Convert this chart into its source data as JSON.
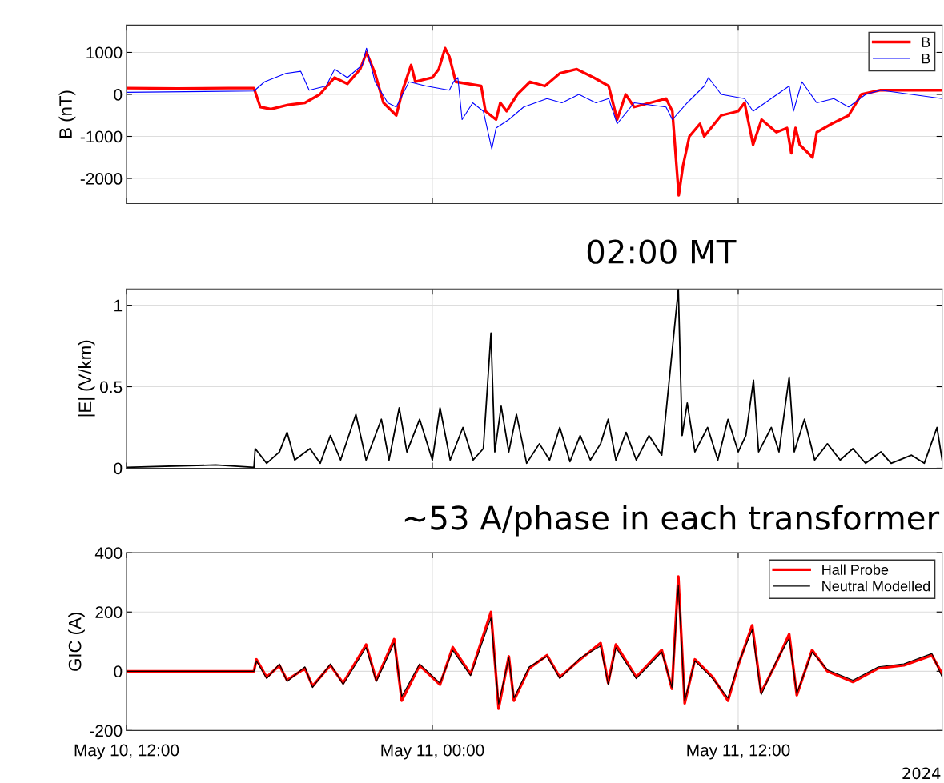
{
  "chart_data": [
    {
      "type": "line",
      "ylabel": "B (nT)",
      "ylim": [
        -2600,
        1650
      ],
      "yticks": [
        -2000,
        -1000,
        0,
        1000
      ],
      "xlim": [
        "2024-05-10T12:00",
        "2024-05-11T20:00"
      ],
      "xticks": [
        {
          "value": "2024-05-10T12:00",
          "label": null
        },
        {
          "value": "2024-05-11T00:00",
          "label": null
        },
        {
          "value": "2024-05-11T12:00",
          "label": null
        }
      ],
      "tick_labels": "y",
      "grid": true,
      "legend": "top right",
      "series": [
        {
          "name": "B",
          "color": "#ff0000",
          "x": [
            "2024-05-10T12:00",
            "2024-05-10T14:00",
            "2024-05-10T16:00",
            "2024-05-10T17:00",
            "2024-05-10T17:05",
            "2024-05-10T17:15",
            "2024-05-10T17:40",
            "2024-05-10T18:20",
            "2024-05-10T19:00",
            "2024-05-10T19:35",
            "2024-05-10T20:10",
            "2024-05-10T20:40",
            "2024-05-10T21:10",
            "2024-05-10T21:25",
            "2024-05-10T21:45",
            "2024-05-10T22:05",
            "2024-05-10T22:35",
            "2024-05-10T22:50",
            "2024-05-10T23:10",
            "2024-05-10T23:20",
            "2024-05-11T00:00",
            "2024-05-11T00:15",
            "2024-05-11T00:30",
            "2024-05-11T00:40",
            "2024-05-11T00:55",
            "2024-05-11T01:55",
            "2024-05-11T02:05",
            "2024-05-11T02:30",
            "2024-05-11T02:40",
            "2024-05-11T02:55",
            "2024-05-11T03:20",
            "2024-05-11T03:50",
            "2024-05-11T04:25",
            "2024-05-11T05:00",
            "2024-05-11T05:40",
            "2024-05-11T06:20",
            "2024-05-11T06:55",
            "2024-05-11T07:05",
            "2024-05-11T07:15",
            "2024-05-11T07:35",
            "2024-05-11T07:55",
            "2024-05-11T09:10",
            "2024-05-11T09:25",
            "2024-05-11T09:40",
            "2024-05-11T09:50",
            "2024-05-11T10:05",
            "2024-05-11T10:30",
            "2024-05-11T10:40",
            "2024-05-11T11:20",
            "2024-05-11T12:00",
            "2024-05-11T12:15",
            "2024-05-11T12:35",
            "2024-05-11T12:55",
            "2024-05-11T13:30",
            "2024-05-11T13:55",
            "2024-05-11T14:05",
            "2024-05-11T14:15",
            "2024-05-11T14:25",
            "2024-05-11T14:55",
            "2024-05-11T15:05",
            "2024-05-11T15:40",
            "2024-05-11T16:20",
            "2024-05-11T16:50",
            "2024-05-11T17:35",
            "2024-05-11T20:00"
          ],
          "values": [
            150,
            140,
            150,
            150,
            0,
            -300,
            -350,
            -250,
            -200,
            0,
            400,
            250,
            600,
            1000,
            500,
            -200,
            -500,
            100,
            700,
            300,
            400,
            600,
            1100,
            900,
            300,
            200,
            -400,
            -600,
            -200,
            -400,
            0,
            300,
            200,
            500,
            600,
            400,
            200,
            -200,
            -600,
            0,
            -300,
            -100,
            -400,
            -2400,
            -1700,
            -1000,
            -700,
            -1000,
            -500,
            -400,
            -200,
            -1200,
            -600,
            -900,
            -800,
            -1400,
            -800,
            -1200,
            -1500,
            -900,
            -700,
            -500,
            0,
            100,
            100
          ]
        },
        {
          "name": "B",
          "color": "#0000ff",
          "x": [
            "2024-05-10T12:00",
            "2024-05-10T17:00",
            "2024-05-10T17:25",
            "2024-05-10T18:15",
            "2024-05-10T18:50",
            "2024-05-10T19:10",
            "2024-05-10T19:50",
            "2024-05-10T20:10",
            "2024-05-10T20:40",
            "2024-05-10T21:15",
            "2024-05-10T21:25",
            "2024-05-10T21:45",
            "2024-05-10T22:15",
            "2024-05-10T22:35",
            "2024-05-10T23:05",
            "2024-05-10T23:45",
            "2024-05-11T00:40",
            "2024-05-11T00:50",
            "2024-05-11T01:00",
            "2024-05-11T01:10",
            "2024-05-11T01:35",
            "2024-05-11T02:00",
            "2024-05-11T02:20",
            "2024-05-11T02:30",
            "2024-05-11T03:00",
            "2024-05-11T03:35",
            "2024-05-11T04:30",
            "2024-05-11T05:05",
            "2024-05-11T05:45",
            "2024-05-11T06:25",
            "2024-05-11T06:55",
            "2024-05-11T07:15",
            "2024-05-11T07:55",
            "2024-05-11T09:10",
            "2024-05-11T09:25",
            "2024-05-11T10:00",
            "2024-05-11T10:40",
            "2024-05-11T10:50",
            "2024-05-11T11:20",
            "2024-05-11T12:15",
            "2024-05-11T12:35",
            "2024-05-11T14:00",
            "2024-05-11T14:10",
            "2024-05-11T14:30",
            "2024-05-11T15:05",
            "2024-05-11T15:45",
            "2024-05-11T16:20",
            "2024-05-11T17:00",
            "2024-05-11T17:35",
            "2024-05-11T20:00"
          ],
          "values": [
            50,
            80,
            300,
            500,
            550,
            100,
            200,
            600,
            400,
            700,
            1100,
            300,
            -200,
            -300,
            300,
            200,
            100,
            300,
            400,
            -600,
            -200,
            -400,
            -1300,
            -800,
            -600,
            -300,
            -100,
            -200,
            0,
            -200,
            -100,
            -700,
            -200,
            -300,
            -600,
            -200,
            200,
            400,
            0,
            -100,
            -400,
            200,
            -400,
            300,
            -200,
            -100,
            -300,
            0,
            100,
            -100
          ]
        }
      ]
    },
    {
      "type": "line",
      "ylabel": "|E| (V/km)",
      "ylim": [
        0,
        1.1
      ],
      "yticks": [
        0,
        0.5,
        1
      ],
      "xlim": [
        "2024-05-10T12:00",
        "2024-05-11T20:00"
      ],
      "xticks": [
        {
          "value": "2024-05-10T12:00",
          "label": null
        },
        {
          "value": "2024-05-11T00:00",
          "label": null
        },
        {
          "value": "2024-05-11T12:00",
          "label": null
        }
      ],
      "tick_labels": "y",
      "grid": true,
      "annotations": [
        "02:00 MT"
      ],
      "series": [
        {
          "color": "#000000",
          "x": [
            "2024-05-10T12:00",
            "2024-05-10T15:30",
            "2024-05-10T17:00",
            "2024-05-10T17:03",
            "2024-05-10T17:30",
            "2024-05-10T18:00",
            "2024-05-10T18:18",
            "2024-05-10T18:36",
            "2024-05-10T19:12",
            "2024-05-10T19:36",
            "2024-05-10T20:00",
            "2024-05-10T20:24",
            "2024-05-10T21:00",
            "2024-05-10T21:24",
            "2024-05-10T22:00",
            "2024-05-10T22:18",
            "2024-05-10T22:42",
            "2024-05-10T23:00",
            "2024-05-10T23:30",
            "2024-05-11T00:00",
            "2024-05-11T00:18",
            "2024-05-11T00:42",
            "2024-05-11T01:12",
            "2024-05-11T01:36",
            "2024-05-11T02:00",
            "2024-05-11T02:18",
            "2024-05-11T02:27",
            "2024-05-11T02:42",
            "2024-05-11T03:00",
            "2024-05-11T03:18",
            "2024-05-11T03:42",
            "2024-05-11T04:12",
            "2024-05-11T04:36",
            "2024-05-11T05:00",
            "2024-05-11T05:24",
            "2024-05-11T05:48",
            "2024-05-11T06:12",
            "2024-05-11T06:36",
            "2024-05-11T06:54",
            "2024-05-11T07:12",
            "2024-05-11T07:36",
            "2024-05-11T08:00",
            "2024-05-11T08:30",
            "2024-05-11T09:00",
            "2024-05-11T09:39",
            "2024-05-11T09:48",
            "2024-05-11T10:00",
            "2024-05-11T10:18",
            "2024-05-11T10:48",
            "2024-05-11T11:12",
            "2024-05-11T11:36",
            "2024-05-11T12:00",
            "2024-05-11T12:18",
            "2024-05-11T12:36",
            "2024-05-11T12:48",
            "2024-05-11T13:18",
            "2024-05-11T13:36",
            "2024-05-11T14:00",
            "2024-05-11T14:12",
            "2024-05-11T14:36",
            "2024-05-11T15:00",
            "2024-05-11T15:30",
            "2024-05-11T16:00",
            "2024-05-11T16:30",
            "2024-05-11T17:00",
            "2024-05-11T17:36",
            "2024-05-11T18:00",
            "2024-05-11T18:48",
            "2024-05-11T19:18",
            "2024-05-11T19:48",
            "2024-05-11T20:00"
          ],
          "values": [
            0.005,
            0.02,
            0.005,
            0.12,
            0.03,
            0.1,
            0.22,
            0.05,
            0.12,
            0.03,
            0.2,
            0.05,
            0.33,
            0.05,
            0.3,
            0.05,
            0.37,
            0.1,
            0.3,
            0.05,
            0.37,
            0.05,
            0.25,
            0.05,
            0.12,
            0.83,
            0.1,
            0.38,
            0.1,
            0.33,
            0.03,
            0.15,
            0.05,
            0.25,
            0.04,
            0.2,
            0.05,
            0.15,
            0.3,
            0.05,
            0.22,
            0.05,
            0.2,
            0.08,
            1.1,
            0.2,
            0.4,
            0.1,
            0.25,
            0.05,
            0.3,
            0.1,
            0.2,
            0.54,
            0.1,
            0.25,
            0.1,
            0.56,
            0.1,
            0.3,
            0.05,
            0.15,
            0.05,
            0.12,
            0.03,
            0.1,
            0.03,
            0.08,
            0.03,
            0.25,
            0.05
          ]
        }
      ]
    },
    {
      "type": "line",
      "ylabel": "GIC (A)",
      "ylim": [
        -200,
        400
      ],
      "yticks": [
        -200,
        0,
        200,
        400
      ],
      "xlim": [
        "2024-05-10T12:00",
        "2024-05-11T20:00"
      ],
      "xticks": [
        {
          "value": "2024-05-10T12:00",
          "label": "May 10, 12:00"
        },
        {
          "value": "2024-05-11T00:00",
          "label": "May 11, 00:00"
        },
        {
          "value": "2024-05-11T12:00",
          "label": "May 11, 12:00"
        }
      ],
      "grid": true,
      "legend": "top right",
      "annotations": [
        "~53 A/phase in each transformer",
        "2024"
      ],
      "x": [
        "2024-05-10T12:00",
        "2024-05-10T17:00",
        "2024-05-10T17:06",
        "2024-05-10T17:30",
        "2024-05-10T18:00",
        "2024-05-10T18:18",
        "2024-05-10T19:00",
        "2024-05-10T19:18",
        "2024-05-10T20:00",
        "2024-05-10T20:30",
        "2024-05-10T21:24",
        "2024-05-10T21:48",
        "2024-05-10T22:30",
        "2024-05-10T22:48",
        "2024-05-10T23:30",
        "2024-05-11T00:18",
        "2024-05-11T00:48",
        "2024-05-11T01:30",
        "2024-05-11T02:18",
        "2024-05-11T02:36",
        "2024-05-11T03:00",
        "2024-05-11T03:12",
        "2024-05-11T03:48",
        "2024-05-11T04:30",
        "2024-05-11T05:00",
        "2024-05-11T05:48",
        "2024-05-11T06:36",
        "2024-05-11T06:54",
        "2024-05-11T07:12",
        "2024-05-11T08:00",
        "2024-05-11T09:00",
        "2024-05-11T09:24",
        "2024-05-11T09:39",
        "2024-05-11T09:54",
        "2024-05-11T10:18",
        "2024-05-11T11:00",
        "2024-05-11T11:36",
        "2024-05-11T12:00",
        "2024-05-11T12:33",
        "2024-05-11T12:54",
        "2024-05-11T13:30",
        "2024-05-11T14:00",
        "2024-05-11T14:18",
        "2024-05-11T14:54",
        "2024-05-11T15:30",
        "2024-05-11T16:30",
        "2024-05-11T17:30",
        "2024-05-11T18:30",
        "2024-05-11T19:36",
        "2024-05-11T20:00"
      ],
      "series": [
        {
          "name": "Hall Probe",
          "color": "#ff0000",
          "values": [
            0,
            0,
            40,
            -20,
            20,
            -30,
            10,
            -50,
            20,
            -40,
            90,
            -30,
            108,
            -99,
            20,
            -45,
            81,
            -10,
            200,
            -126,
            50,
            -99,
            10,
            54,
            -20,
            40,
            95,
            -40,
            90,
            -20,
            72,
            -59,
            320,
            -108,
            40,
            -20,
            -99,
            20,
            155,
            -72,
            30,
            125,
            -81,
            72,
            0,
            -36,
            10,
            20,
            54,
            -9
          ]
        },
        {
          "name": "Neutral Modelled",
          "color": "#000000",
          "values": [
            0,
            0,
            35,
            -25,
            25,
            -35,
            15,
            -55,
            25,
            -45,
            80,
            -35,
            95,
            -85,
            25,
            -40,
            70,
            -15,
            180,
            -110,
            45,
            -90,
            15,
            50,
            -25,
            45,
            85,
            -45,
            80,
            -25,
            65,
            -55,
            290,
            -100,
            35,
            -25,
            -90,
            25,
            140,
            -80,
            35,
            110,
            -75,
            65,
            5,
            -30,
            15,
            25,
            60,
            -20
          ]
        }
      ]
    }
  ]
}
